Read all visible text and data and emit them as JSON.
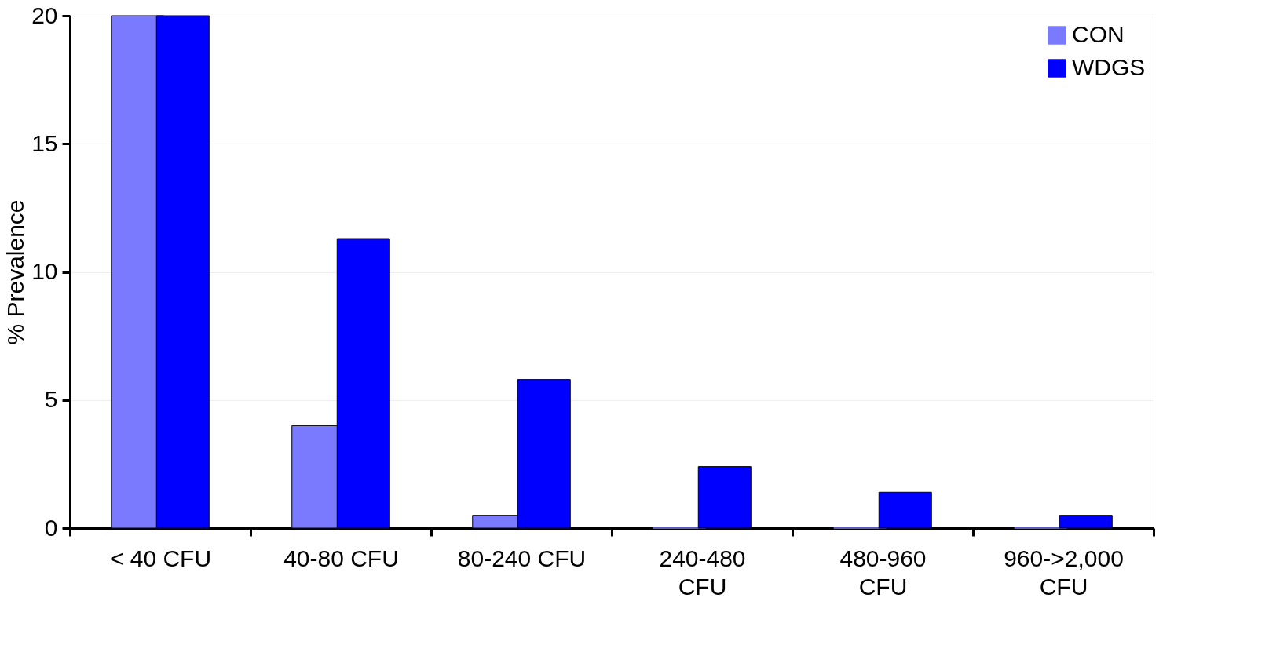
{
  "chart_data": {
    "type": "bar",
    "ylabel": "% Prevalence",
    "categories": [
      "< 40 CFU",
      "40-80 CFU",
      "80-240 CFU",
      "240-480\nCFU",
      "480-960\nCFU",
      "960->2,000\nCFU"
    ],
    "series": [
      {
        "name": "CON",
        "color": "#7a7aff",
        "values": [
          20,
          4.0,
          0.5,
          0,
          0,
          0
        ]
      },
      {
        "name": "WDGS",
        "color": "#0000ff",
        "values": [
          20,
          11.3,
          5.8,
          2.4,
          1.4,
          0.5
        ]
      }
    ],
    "ylim": [
      0,
      20
    ],
    "yticks": [
      0,
      5,
      10,
      15,
      20
    ],
    "grid": "y",
    "legend": "top right"
  }
}
